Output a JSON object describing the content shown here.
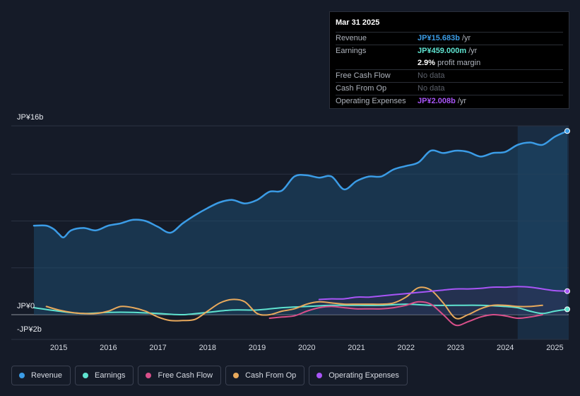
{
  "tooltip": {
    "date": "Mar 31 2025",
    "rows": {
      "revenue": {
        "label": "Revenue",
        "value": "JP¥15.683b",
        "unit": "/yr",
        "color": "#3b9ce6"
      },
      "earnings": {
        "label": "Earnings",
        "value": "JP¥459.000m",
        "unit": "/yr",
        "color": "#5fe3d0"
      },
      "margin": {
        "value": "2.9%",
        "unit": "profit margin"
      },
      "fcf": {
        "label": "Free Cash Flow",
        "value": "No data"
      },
      "cfo": {
        "label": "Cash From Op",
        "value": "No data"
      },
      "opex": {
        "label": "Operating Expenses",
        "value": "JP¥2.008b",
        "unit": "/yr",
        "color": "#a855f7"
      }
    }
  },
  "legend": [
    {
      "label": "Revenue",
      "color": "#3b9ce6"
    },
    {
      "label": "Earnings",
      "color": "#5fe3d0"
    },
    {
      "label": "Free Cash Flow",
      "color": "#d94f8a"
    },
    {
      "label": "Cash From Op",
      "color": "#e8a95c"
    },
    {
      "label": "Operating Expenses",
      "color": "#a855f7"
    }
  ],
  "chart_data": {
    "type": "line",
    "title": "",
    "y_axis_labels": {
      "top": "JP¥16b",
      "zero": "JP¥0",
      "bottom": "-JP¥2b"
    },
    "ylim": [
      -2,
      16
    ],
    "xlim": [
      2014.5,
      2025.25
    ],
    "x_ticks": [
      "2015",
      "2016",
      "2017",
      "2018",
      "2019",
      "2020",
      "2021",
      "2022",
      "2023",
      "2024",
      "2025"
    ],
    "series": [
      {
        "name": "Revenue",
        "color": "#3b9ce6",
        "fill": true,
        "x": [
          2014.5,
          2014.75,
          2014.9,
          2015.0,
          2015.1,
          2015.25,
          2015.5,
          2015.75,
          2016.0,
          2016.25,
          2016.5,
          2016.75,
          2017.0,
          2017.25,
          2017.5,
          2017.75,
          2018.0,
          2018.25,
          2018.5,
          2018.75,
          2019.0,
          2019.25,
          2019.5,
          2019.75,
          2020.0,
          2020.25,
          2020.5,
          2020.75,
          2021.0,
          2021.25,
          2021.5,
          2021.75,
          2022.0,
          2022.25,
          2022.5,
          2022.75,
          2023.0,
          2023.25,
          2023.5,
          2023.75,
          2024.0,
          2024.25,
          2024.5,
          2024.75,
          2025.0,
          2025.25
        ],
        "values": [
          7.6,
          7.6,
          7.3,
          6.9,
          6.6,
          7.2,
          7.4,
          7.2,
          7.6,
          7.8,
          8.1,
          8.0,
          7.5,
          7.0,
          7.8,
          8.5,
          9.1,
          9.6,
          9.8,
          9.5,
          9.8,
          10.5,
          10.6,
          11.8,
          11.9,
          11.7,
          11.8,
          10.7,
          11.4,
          11.8,
          11.8,
          12.4,
          12.7,
          13.0,
          14.0,
          13.8,
          14.0,
          13.9,
          13.5,
          13.8,
          13.9,
          14.5,
          14.7,
          14.5,
          15.2,
          15.68
        ]
      },
      {
        "name": "Earnings",
        "color": "#5fe3d0",
        "x": [
          2014.5,
          2015.0,
          2015.5,
          2016.0,
          2016.5,
          2017.0,
          2017.5,
          2018.0,
          2018.5,
          2019.0,
          2019.5,
          2020.0,
          2020.5,
          2021.0,
          2021.5,
          2022.0,
          2022.5,
          2023.0,
          2023.5,
          2024.0,
          2024.25,
          2024.5,
          2024.75,
          2025.0,
          2025.25
        ],
        "values": [
          0.6,
          0.3,
          0.1,
          0.2,
          0.2,
          0.1,
          0.0,
          0.2,
          0.4,
          0.4,
          0.6,
          0.7,
          0.8,
          0.8,
          0.8,
          0.9,
          0.8,
          0.8,
          0.8,
          0.7,
          0.6,
          0.3,
          0.1,
          0.3,
          0.46
        ]
      },
      {
        "name": "Free Cash Flow",
        "color": "#d94f8a",
        "x": [
          2019.25,
          2019.5,
          2019.75,
          2020.0,
          2020.25,
          2020.5,
          2020.75,
          2021.0,
          2021.25,
          2021.5,
          2021.75,
          2022.0,
          2022.25,
          2022.5,
          2022.75,
          2023.0,
          2023.25,
          2023.5,
          2023.75,
          2024.0,
          2024.25,
          2024.5,
          2024.75
        ],
        "values": [
          -0.3,
          -0.2,
          -0.1,
          0.3,
          0.6,
          0.7,
          0.6,
          0.5,
          0.5,
          0.5,
          0.6,
          0.8,
          1.1,
          0.9,
          0.0,
          -0.9,
          -0.6,
          -0.2,
          0.0,
          -0.1,
          -0.3,
          -0.2,
          0.0
        ]
      },
      {
        "name": "Cash From Op",
        "color": "#e8a95c",
        "x": [
          2014.75,
          2015.0,
          2015.25,
          2015.5,
          2015.75,
          2016.0,
          2016.25,
          2016.5,
          2016.75,
          2017.0,
          2017.25,
          2017.5,
          2017.75,
          2018.0,
          2018.25,
          2018.5,
          2018.75,
          2019.0,
          2019.25,
          2019.5,
          2019.75,
          2020.0,
          2020.25,
          2020.5,
          2020.75,
          2021.0,
          2021.25,
          2021.5,
          2021.75,
          2022.0,
          2022.25,
          2022.5,
          2022.75,
          2023.0,
          2023.25,
          2023.5,
          2023.75,
          2024.0,
          2024.25,
          2024.5,
          2024.75
        ],
        "values": [
          0.7,
          0.4,
          0.2,
          0.1,
          0.1,
          0.3,
          0.7,
          0.6,
          0.3,
          -0.2,
          -0.5,
          -0.5,
          -0.4,
          0.3,
          1.0,
          1.3,
          1.1,
          0.1,
          0.0,
          0.3,
          0.5,
          0.9,
          1.1,
          1.0,
          0.9,
          0.9,
          0.9,
          0.9,
          1.0,
          1.5,
          2.3,
          2.1,
          1.0,
          -0.3,
          0.0,
          0.5,
          0.8,
          0.8,
          0.7,
          0.7,
          0.8
        ]
      },
      {
        "name": "Operating Expenses",
        "color": "#a855f7",
        "x": [
          2020.25,
          2020.5,
          2020.75,
          2021.0,
          2021.25,
          2021.5,
          2021.75,
          2022.0,
          2022.25,
          2022.5,
          2022.75,
          2023.0,
          2023.25,
          2023.5,
          2023.75,
          2024.0,
          2024.25,
          2024.5,
          2024.75,
          2025.0,
          2025.25
        ],
        "values": [
          1.3,
          1.35,
          1.35,
          1.5,
          1.5,
          1.6,
          1.7,
          1.8,
          1.9,
          2.0,
          2.1,
          2.2,
          2.2,
          2.25,
          2.35,
          2.35,
          2.4,
          2.35,
          2.2,
          2.05,
          2.01
        ]
      }
    ]
  }
}
